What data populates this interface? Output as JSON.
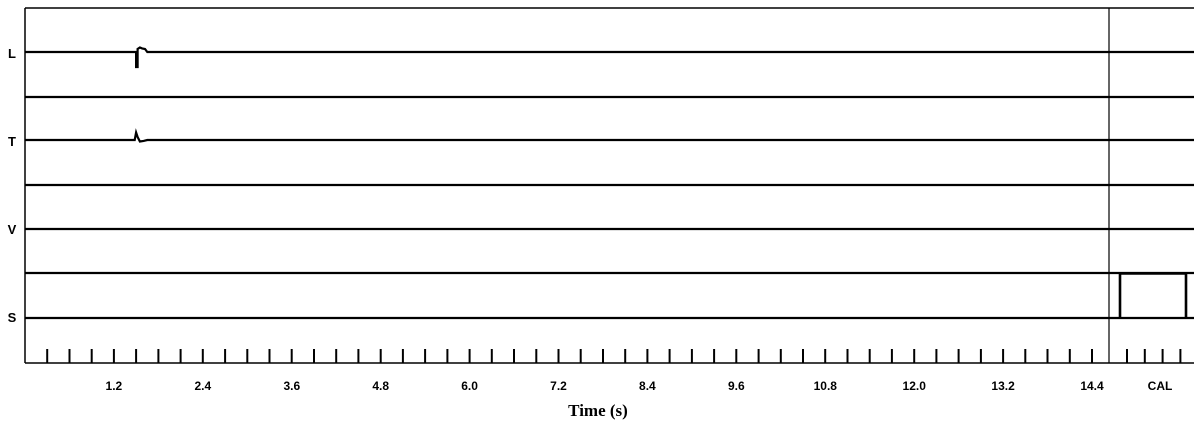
{
  "chart_data": {
    "type": "line",
    "title": "",
    "xlabel": "Time (s)",
    "ylabel": "",
    "xlim": [
      0,
      15
    ],
    "calibration_label": "CAL",
    "x_ticks": [
      "1.2",
      "2.4",
      "3.6",
      "4.8",
      "6.0",
      "7.2",
      "8.4",
      "9.6",
      "10.8",
      "12.0",
      "13.2",
      "14.4"
    ],
    "minor_tick_step": 0.3,
    "grid": false,
    "line_color": "#000000",
    "series": [
      {
        "name": "L",
        "x": [
          0,
          1.48,
          1.5,
          1.5,
          1.52,
          1.52,
          1.55,
          1.58,
          1.62,
          1.65,
          15
        ],
        "y": [
          0,
          0,
          0,
          -0.5,
          -0.5,
          0.1,
          0.15,
          0.12,
          0.1,
          0,
          0
        ]
      },
      {
        "name": "T",
        "x": [
          0,
          1.48,
          1.5,
          1.52,
          1.55,
          1.6,
          1.65,
          15
        ],
        "y": [
          0,
          0,
          0.25,
          0.1,
          -0.05,
          -0.03,
          0,
          0
        ]
      },
      {
        "name": "V",
        "x": [
          0,
          15
        ],
        "y": [
          0,
          0
        ]
      },
      {
        "name": "S",
        "x": [
          0,
          15
        ],
        "y": [
          0,
          0
        ]
      }
    ]
  }
}
